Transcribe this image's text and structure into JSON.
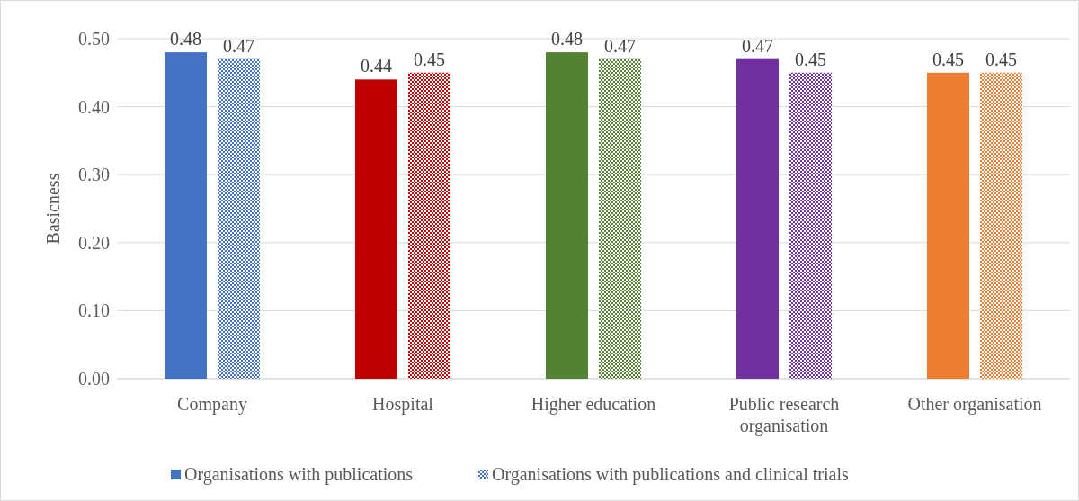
{
  "chart_data": {
    "type": "bar",
    "ylabel": "Basicness",
    "categories": [
      "Company",
      "Hospital",
      "Higher education",
      "Public research organisation",
      "Other organisation"
    ],
    "series": [
      {
        "name": "Organisations with publications",
        "color": "#4472c4",
        "colors": [
          "#4472c4",
          "#c00000",
          "#548235",
          "#7030a0",
          "#ed7d31"
        ],
        "values": [
          0.48,
          0.44,
          0.48,
          0.47,
          0.45
        ]
      },
      {
        "name": "Organisations with publications and clinical trials",
        "color": "#4472c4",
        "colors": [
          "#4472c4",
          "#c00000",
          "#548235",
          "#7030a0",
          "#ed7d31"
        ],
        "values": [
          0.47,
          0.45,
          0.47,
          0.45,
          0.45
        ]
      }
    ],
    "ylim": [
      0,
      0.5
    ],
    "yticks": [
      {
        "value": 0,
        "label": "0.00"
      },
      {
        "value": 0.1,
        "label": "0.10"
      },
      {
        "value": 0.2,
        "label": "0.20"
      },
      {
        "value": 0.3,
        "label": "0.30"
      },
      {
        "value": 0.4,
        "label": "0.40"
      },
      {
        "value": 0.5,
        "label": "0.50"
      }
    ],
    "grid": "y",
    "legend": "bottom",
    "data_labels": true
  }
}
